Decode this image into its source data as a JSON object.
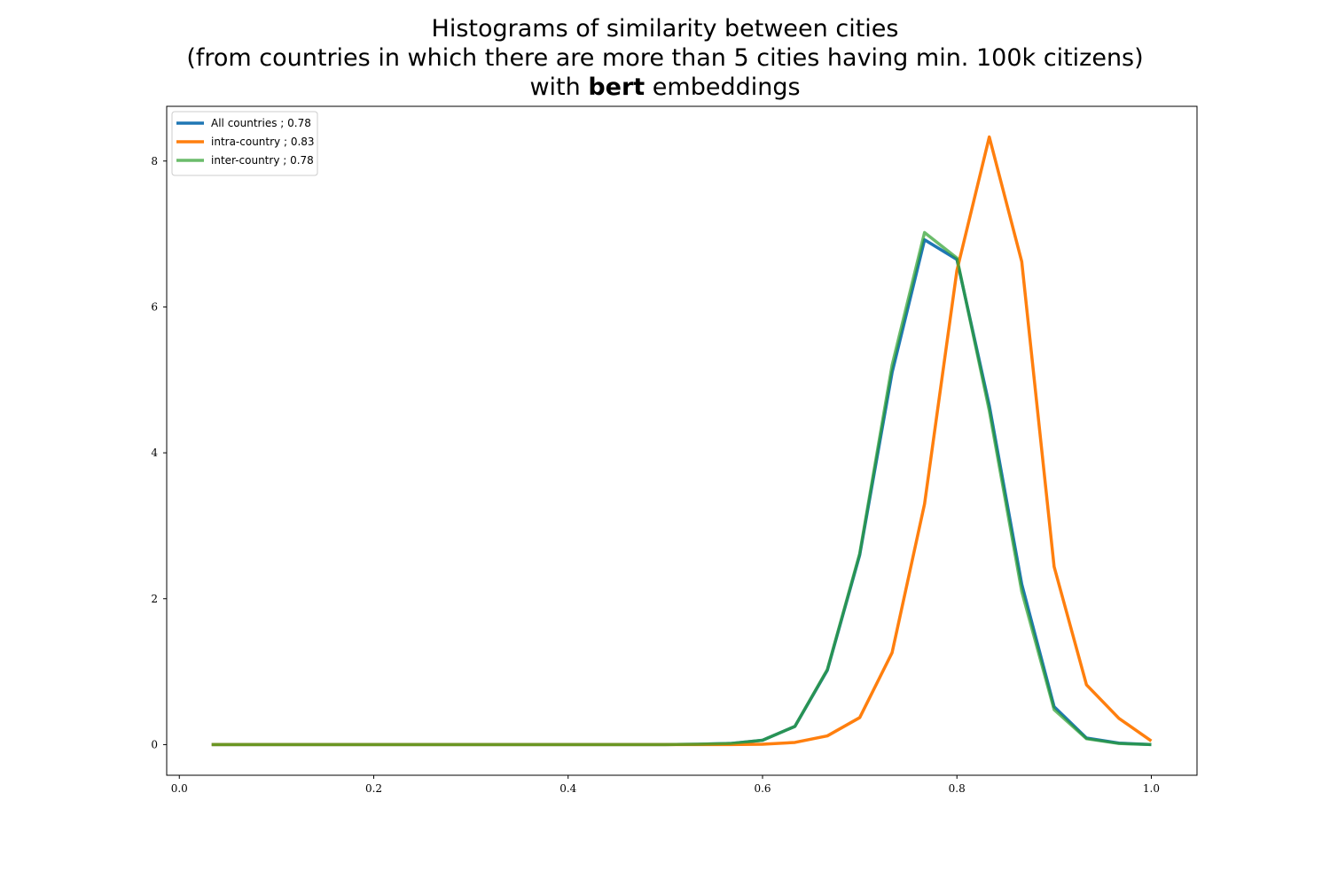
{
  "chart_data": {
    "type": "line",
    "title_lines": {
      "line1": "Histograms of similarity between cities",
      "line2": "(from countries in which there are more than 5 cities having min. 100k citizens)",
      "line3_prefix": "with ",
      "line3_bold": "bert",
      "line3_suffix": " embeddings"
    },
    "xlabel": "",
    "ylabel": "",
    "xlim": [
      -0.013,
      1.047
    ],
    "ylim": [
      -0.42,
      8.75
    ],
    "xticks": [
      0.0,
      0.2,
      0.4,
      0.6,
      0.8,
      1.0
    ],
    "xtick_labels": [
      "0.0",
      "0.2",
      "0.4",
      "0.6",
      "0.8",
      "1.0"
    ],
    "yticks": [
      0,
      2,
      4,
      6,
      8
    ],
    "ytick_labels": [
      "0",
      "2",
      "4",
      "6",
      "8"
    ],
    "grid": false,
    "legend_position": "top-left",
    "x": [
      0.0333,
      0.0667,
      0.1,
      0.1333,
      0.1667,
      0.2,
      0.2333,
      0.2667,
      0.3,
      0.3333,
      0.3667,
      0.4,
      0.4333,
      0.4667,
      0.5,
      0.5333,
      0.5667,
      0.6,
      0.6333,
      0.6667,
      0.7,
      0.7333,
      0.7667,
      0.8,
      0.8333,
      0.8667,
      0.9,
      0.9333,
      0.9667,
      1.0
    ],
    "series": [
      {
        "name": "All countries ; 0.78",
        "color": "#1f77b4",
        "values": [
          0,
          0,
          0,
          0,
          0,
          0,
          0,
          0,
          0,
          0,
          0,
          0,
          0,
          0,
          0,
          0.005,
          0.015,
          0.06,
          0.25,
          1.02,
          2.6,
          5.1,
          6.92,
          6.65,
          4.65,
          2.2,
          0.52,
          0.09,
          0.02,
          0.0
        ]
      },
      {
        "name": "intra-country ; 0.83",
        "color": "#ff7f0e",
        "values": [
          0,
          0,
          0,
          0,
          0,
          0,
          0,
          0,
          0,
          0,
          0,
          0,
          0,
          0,
          0,
          0,
          0,
          0.005,
          0.03,
          0.12,
          0.37,
          1.26,
          3.3,
          6.5,
          8.33,
          6.62,
          2.44,
          0.82,
          0.36,
          0.05
        ]
      },
      {
        "name": "inter-country ; 0.78",
        "color": "#2ca02c",
        "values": [
          0,
          0,
          0,
          0,
          0,
          0,
          0,
          0,
          0,
          0,
          0,
          0,
          0,
          0,
          0,
          0.005,
          0.015,
          0.06,
          0.25,
          1.03,
          2.62,
          5.2,
          7.02,
          6.67,
          4.58,
          2.1,
          0.48,
          0.08,
          0.015,
          0.0
        ]
      }
    ]
  }
}
